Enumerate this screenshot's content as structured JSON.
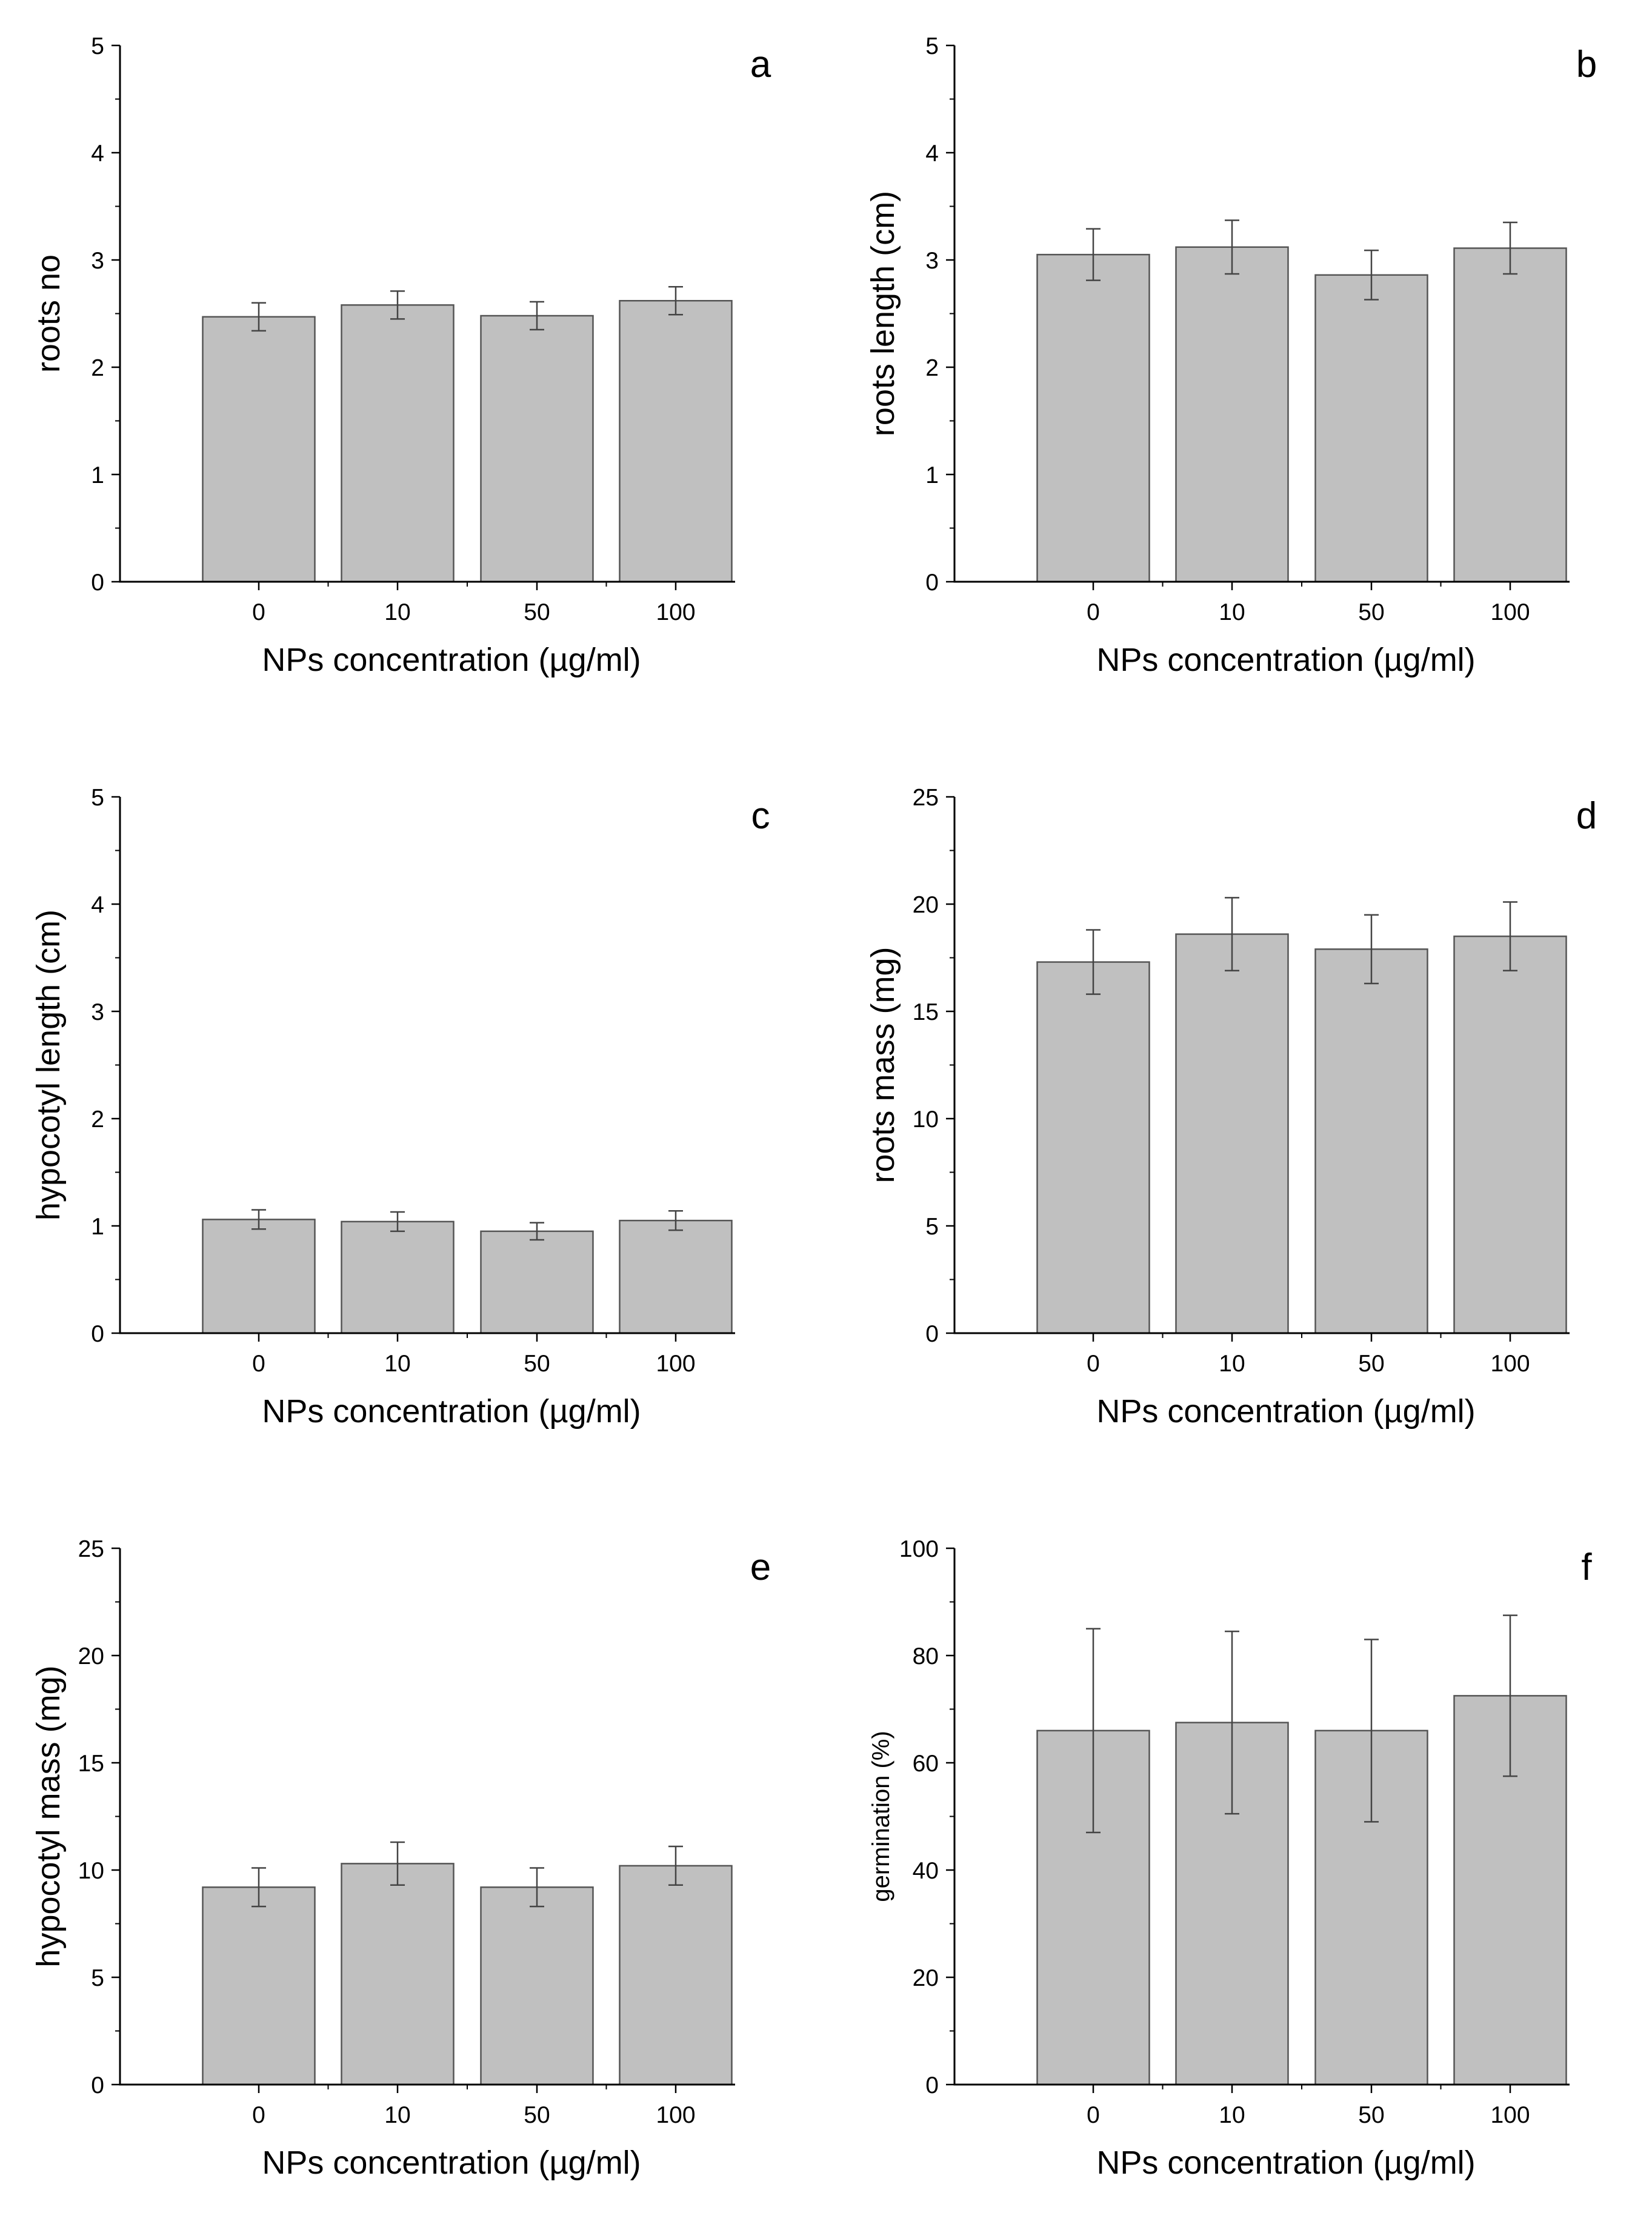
{
  "figure": {
    "bar_color": "#c0c0c0",
    "bar_edge_color": "#555555",
    "axis_color": "#000000"
  },
  "chart_data": [
    {
      "type": "bar",
      "panel_label": "a",
      "categories": [
        "0",
        "10",
        "50",
        "100"
      ],
      "values": [
        2.47,
        2.58,
        2.48,
        2.62
      ],
      "errors": [
        0.13,
        0.13,
        0.13,
        0.13
      ],
      "xlabel": "NPs concentration (µg/ml)",
      "ylabel": "roots no",
      "ylim": [
        0,
        5
      ],
      "yticks": [
        "0",
        "1",
        "2",
        "3",
        "4",
        "5"
      ],
      "grid": false
    },
    {
      "type": "bar",
      "panel_label": "b",
      "categories": [
        "0",
        "10",
        "50",
        "100"
      ],
      "values": [
        3.05,
        3.12,
        2.86,
        3.11
      ],
      "errors": [
        0.24,
        0.25,
        0.23,
        0.24
      ],
      "xlabel": "NPs concentration (µg/ml)",
      "ylabel": "roots length (cm)",
      "ylim": [
        0,
        5
      ],
      "yticks": [
        "0",
        "1",
        "2",
        "3",
        "4",
        "5"
      ],
      "grid": false
    },
    {
      "type": "bar",
      "panel_label": "c",
      "categories": [
        "0",
        "10",
        "50",
        "100"
      ],
      "values": [
        1.06,
        1.04,
        0.95,
        1.05
      ],
      "errors": [
        0.09,
        0.09,
        0.08,
        0.09
      ],
      "xlabel": "NPs concentration (µg/ml)",
      "ylabel": "hypocotyl length (cm)",
      "ylim": [
        0,
        5
      ],
      "yticks": [
        "0",
        "1",
        "2",
        "3",
        "4",
        "5"
      ],
      "grid": false
    },
    {
      "type": "bar",
      "panel_label": "d",
      "categories": [
        "0",
        "10",
        "50",
        "100"
      ],
      "values": [
        17.3,
        18.6,
        17.9,
        18.5
      ],
      "errors": [
        1.5,
        1.7,
        1.6,
        1.6
      ],
      "xlabel": "NPs concentration (µg/ml)",
      "ylabel": "roots mass (mg)",
      "ylim": [
        0,
        25
      ],
      "yticks": [
        "0",
        "5",
        "10",
        "15",
        "20",
        "25"
      ],
      "grid": false
    },
    {
      "type": "bar",
      "panel_label": "e",
      "categories": [
        "0",
        "10",
        "50",
        "100"
      ],
      "values": [
        9.2,
        10.3,
        9.2,
        10.2
      ],
      "errors": [
        0.9,
        1.0,
        0.9,
        0.9
      ],
      "xlabel": "NPs concentration (µg/ml)",
      "ylabel": "hypocotyl mass (mg)",
      "ylim": [
        0,
        25
      ],
      "yticks": [
        "0",
        "5",
        "10",
        "15",
        "20",
        "25"
      ],
      "grid": false
    },
    {
      "type": "bar",
      "panel_label": "f",
      "categories": [
        "0",
        "10",
        "50",
        "100"
      ],
      "values": [
        66.0,
        67.5,
        66.0,
        72.5
      ],
      "errors": [
        19.0,
        17.0,
        17.0,
        15.0
      ],
      "xlabel": "NPs concentration (µg/ml)",
      "ylabel": "germination (%)",
      "ylim": [
        0,
        100
      ],
      "yticks": [
        "0",
        "20",
        "40",
        "60",
        "80",
        "100"
      ],
      "grid": false
    }
  ]
}
